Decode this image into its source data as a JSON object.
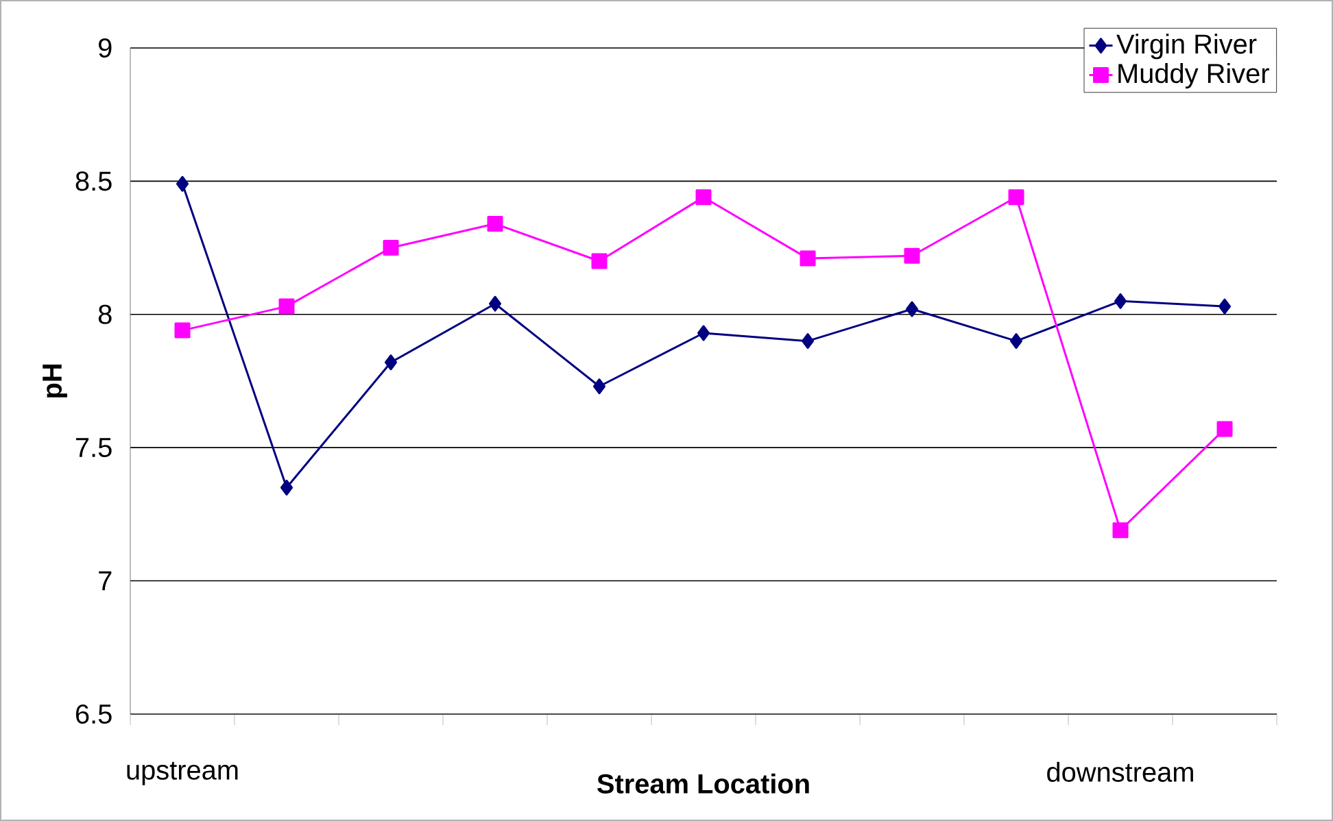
{
  "chart_data": {
    "type": "line",
    "xlabel": "Stream Location",
    "ylabel": "pH",
    "categories": [
      "upstream",
      null,
      null,
      null,
      null,
      null,
      null,
      null,
      null,
      "downstream",
      null
    ],
    "series": [
      {
        "name": "Virgin River",
        "color": "#000080",
        "marker": "diamond",
        "values": [
          8.49,
          7.35,
          7.82,
          8.04,
          7.73,
          7.93,
          7.9,
          8.02,
          7.9,
          8.05,
          8.03
        ]
      },
      {
        "name": "Muddy River",
        "color": "#ff00ff",
        "marker": "square",
        "values": [
          7.94,
          8.03,
          8.25,
          8.34,
          8.2,
          8.44,
          8.21,
          8.22,
          8.44,
          7.19,
          7.57
        ]
      }
    ],
    "ylim": [
      6.5,
      9
    ],
    "yticks": [
      6.5,
      7,
      7.5,
      8,
      8.5,
      9
    ],
    "grid": "y",
    "legend": "top right",
    "line_style": "solid"
  }
}
